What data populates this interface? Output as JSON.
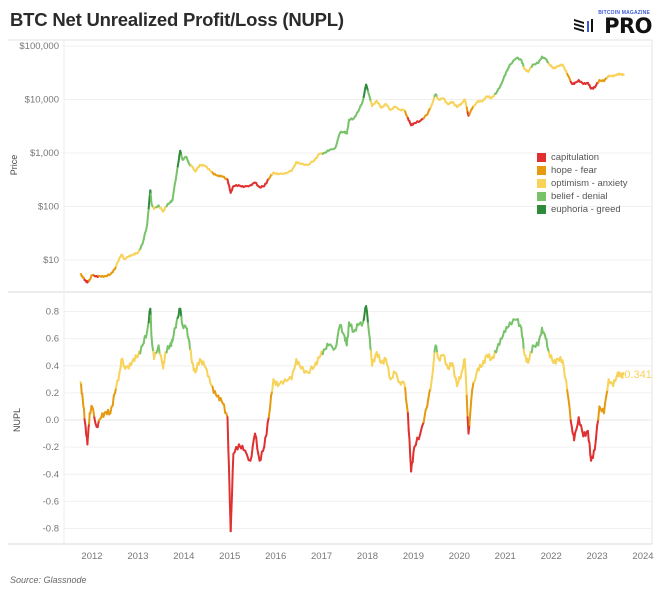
{
  "header": {
    "title": "BTC Net Unrealized Profit/Loss (NUPL)",
    "logo_small": "BITCOIN MAGAZINE",
    "logo_main": "PRO"
  },
  "footer": {
    "source": "Source: Glassnode"
  },
  "chart_data": [
    {
      "type": "line",
      "panel": "price",
      "ylabel": "Price",
      "yscale": "log",
      "ylim": [
        4,
        100000
      ],
      "yticks": [
        100000,
        10000,
        1000,
        100,
        10
      ],
      "ytick_labels": [
        "$100,000",
        "$10,000",
        "$1,000",
        "$100",
        "$10"
      ],
      "xlim": [
        2011.4,
        2024.0
      ],
      "grid": true,
      "legend": {
        "placement": "right-center",
        "entries": [
          {
            "label": "capitulation",
            "color": "#e03030"
          },
          {
            "label": "hope - fear",
            "color": "#e59a10"
          },
          {
            "label": "optimism - anxiety",
            "color": "#f7d35a"
          },
          {
            "label": "belief - denial",
            "color": "#78c36a"
          },
          {
            "label": "euphoria - greed",
            "color": "#2e8b3a"
          }
        ]
      }
    },
    {
      "type": "line",
      "panel": "nupl",
      "ylabel": "NUPL",
      "ylim": [
        -0.85,
        0.85
      ],
      "yticks": [
        0.8,
        0.6,
        0.4,
        0.2,
        0.0,
        -0.2,
        -0.4,
        -0.6,
        -0.8
      ],
      "ytick_labels": [
        "0.8",
        "0.6",
        "0.4",
        "0.2",
        "0.0",
        "-0.2",
        "-0.4",
        "-0.6",
        "-0.8"
      ],
      "annotation": {
        "label": "0.341",
        "x": 2023.55,
        "y": 0.341,
        "color": "#f7d35a"
      },
      "grid": true
    }
  ],
  "x_axis": {
    "ticks": [
      2012,
      2013,
      2014,
      2015,
      2016,
      2017,
      2018,
      2019,
      2020,
      2021,
      2022,
      2023,
      2024
    ],
    "labels": [
      "2012",
      "2013",
      "2014",
      "2015",
      "2016",
      "2017",
      "2018",
      "2019",
      "2020",
      "2021",
      "2022",
      "2023",
      "2024"
    ]
  },
  "zones": [
    {
      "name": "capitulation",
      "min": -1.0,
      "max": 0.0,
      "color": "#e03030"
    },
    {
      "name": "hope - fear",
      "min": 0.0,
      "max": 0.25,
      "color": "#e59a10"
    },
    {
      "name": "optimism - anxiety",
      "min": 0.25,
      "max": 0.5,
      "color": "#f7d35a"
    },
    {
      "name": "belief - denial",
      "min": 0.5,
      "max": 0.75,
      "color": "#78c36a"
    },
    {
      "name": "euphoria - greed",
      "min": 0.75,
      "max": 1.0,
      "color": "#2e8b3a"
    }
  ],
  "series": {
    "points": [
      [
        2011.75,
        5.5,
        0.28
      ],
      [
        2011.8,
        4.8,
        0.15
      ],
      [
        2011.85,
        4.2,
        -0.02
      ],
      [
        2011.9,
        3.8,
        -0.18
      ],
      [
        2011.95,
        4.3,
        0.05
      ],
      [
        2012.0,
        5.2,
        0.1
      ],
      [
        2012.1,
        5.0,
        -0.05
      ],
      [
        2012.2,
        4.9,
        0.02
      ],
      [
        2012.3,
        5.0,
        0.06
      ],
      [
        2012.4,
        5.4,
        0.05
      ],
      [
        2012.5,
        6.8,
        0.2
      ],
      [
        2012.6,
        11.0,
        0.35
      ],
      [
        2012.65,
        12.5,
        0.45
      ],
      [
        2012.7,
        10.5,
        0.4
      ],
      [
        2012.8,
        11.5,
        0.38
      ],
      [
        2012.9,
        12.8,
        0.45
      ],
      [
        2013.0,
        13.5,
        0.47
      ],
      [
        2013.1,
        20,
        0.55
      ],
      [
        2013.2,
        45,
        0.65
      ],
      [
        2013.27,
        200,
        0.82
      ],
      [
        2013.3,
        110,
        0.6
      ],
      [
        2013.35,
        90,
        0.45
      ],
      [
        2013.45,
        105,
        0.55
      ],
      [
        2013.55,
        80,
        0.38
      ],
      [
        2013.6,
        98,
        0.5
      ],
      [
        2013.7,
        120,
        0.55
      ],
      [
        2013.75,
        130,
        0.58
      ],
      [
        2013.85,
        450,
        0.74
      ],
      [
        2013.92,
        1100,
        0.82
      ],
      [
        2013.97,
        750,
        0.7
      ],
      [
        2014.05,
        850,
        0.68
      ],
      [
        2014.12,
        620,
        0.58
      ],
      [
        2014.18,
        560,
        0.42
      ],
      [
        2014.25,
        450,
        0.35
      ],
      [
        2014.35,
        600,
        0.45
      ],
      [
        2014.45,
        580,
        0.4
      ],
      [
        2014.55,
        500,
        0.32
      ],
      [
        2014.65,
        400,
        0.2
      ],
      [
        2014.75,
        380,
        0.18
      ],
      [
        2014.85,
        360,
        0.12
      ],
      [
        2014.95,
        320,
        0.02
      ],
      [
        2015.02,
        180,
        -0.82
      ],
      [
        2015.08,
        240,
        -0.25
      ],
      [
        2015.2,
        250,
        -0.18
      ],
      [
        2015.3,
        230,
        -0.22
      ],
      [
        2015.45,
        250,
        -0.3
      ],
      [
        2015.55,
        280,
        -0.1
      ],
      [
        2015.65,
        230,
        -0.3
      ],
      [
        2015.75,
        240,
        -0.2
      ],
      [
        2015.85,
        330,
        0.02
      ],
      [
        2015.95,
        430,
        0.3
      ],
      [
        2016.05,
        400,
        0.25
      ],
      [
        2016.2,
        420,
        0.3
      ],
      [
        2016.35,
        460,
        0.3
      ],
      [
        2016.45,
        680,
        0.45
      ],
      [
        2016.55,
        620,
        0.38
      ],
      [
        2016.7,
        600,
        0.35
      ],
      [
        2016.85,
        740,
        0.4
      ],
      [
        2016.95,
        960,
        0.46
      ],
      [
        2017.05,
        1000,
        0.52
      ],
      [
        2017.15,
        1100,
        0.55
      ],
      [
        2017.3,
        1250,
        0.53
      ],
      [
        2017.4,
        2400,
        0.7
      ],
      [
        2017.5,
        2500,
        0.62
      ],
      [
        2017.55,
        2300,
        0.55
      ],
      [
        2017.6,
        4200,
        0.72
      ],
      [
        2017.7,
        4400,
        0.65
      ],
      [
        2017.8,
        6000,
        0.7
      ],
      [
        2017.9,
        9500,
        0.72
      ],
      [
        2017.97,
        19000,
        0.84
      ],
      [
        2018.05,
        11000,
        0.6
      ],
      [
        2018.1,
        7500,
        0.4
      ],
      [
        2018.2,
        9500,
        0.5
      ],
      [
        2018.3,
        7000,
        0.42
      ],
      [
        2018.4,
        8200,
        0.45
      ],
      [
        2018.5,
        6400,
        0.3
      ],
      [
        2018.6,
        7300,
        0.35
      ],
      [
        2018.7,
        6500,
        0.28
      ],
      [
        2018.8,
        6300,
        0.27
      ],
      [
        2018.88,
        4500,
        0.05
      ],
      [
        2018.95,
        3300,
        -0.38
      ],
      [
        2019.02,
        3600,
        -0.2
      ],
      [
        2019.15,
        4000,
        -0.1
      ],
      [
        2019.3,
        5200,
        0.1
      ],
      [
        2019.4,
        8000,
        0.3
      ],
      [
        2019.48,
        12500,
        0.55
      ],
      [
        2019.55,
        10000,
        0.45
      ],
      [
        2019.65,
        10500,
        0.48
      ],
      [
        2019.75,
        8200,
        0.38
      ],
      [
        2019.85,
        9000,
        0.42
      ],
      [
        2019.95,
        7200,
        0.25
      ],
      [
        2020.05,
        8500,
        0.35
      ],
      [
        2020.12,
        10000,
        0.45
      ],
      [
        2020.2,
        5000,
        -0.1
      ],
      [
        2020.28,
        6800,
        0.22
      ],
      [
        2020.4,
        9300,
        0.38
      ],
      [
        2020.5,
        9200,
        0.4
      ],
      [
        2020.6,
        11500,
        0.48
      ],
      [
        2020.7,
        10700,
        0.45
      ],
      [
        2020.8,
        13000,
        0.5
      ],
      [
        2020.9,
        18500,
        0.6
      ],
      [
        2021.0,
        29000,
        0.65
      ],
      [
        2021.1,
        45000,
        0.72
      ],
      [
        2021.25,
        60000,
        0.74
      ],
      [
        2021.35,
        55000,
        0.68
      ],
      [
        2021.42,
        37000,
        0.48
      ],
      [
        2021.5,
        33000,
        0.42
      ],
      [
        2021.6,
        45000,
        0.55
      ],
      [
        2021.72,
        48000,
        0.55
      ],
      [
        2021.8,
        63000,
        0.68
      ],
      [
        2021.88,
        57000,
        0.6
      ],
      [
        2021.95,
        47000,
        0.5
      ],
      [
        2022.05,
        38000,
        0.42
      ],
      [
        2022.15,
        42000,
        0.45
      ],
      [
        2022.25,
        45000,
        0.44
      ],
      [
        2022.35,
        30000,
        0.22
      ],
      [
        2022.45,
        20000,
        -0.05
      ],
      [
        2022.5,
        19500,
        -0.15
      ],
      [
        2022.6,
        23000,
        0.02
      ],
      [
        2022.7,
        19500,
        -0.12
      ],
      [
        2022.8,
        20500,
        -0.08
      ],
      [
        2022.87,
        16000,
        -0.3
      ],
      [
        2022.95,
        16800,
        -0.22
      ],
      [
        2023.05,
        23000,
        0.1
      ],
      [
        2023.15,
        22000,
        0.05
      ],
      [
        2023.25,
        28000,
        0.3
      ],
      [
        2023.35,
        27000,
        0.25
      ],
      [
        2023.45,
        30000,
        0.35
      ],
      [
        2023.52,
        29500,
        0.32
      ],
      [
        2023.58,
        29200,
        0.341
      ]
    ]
  }
}
